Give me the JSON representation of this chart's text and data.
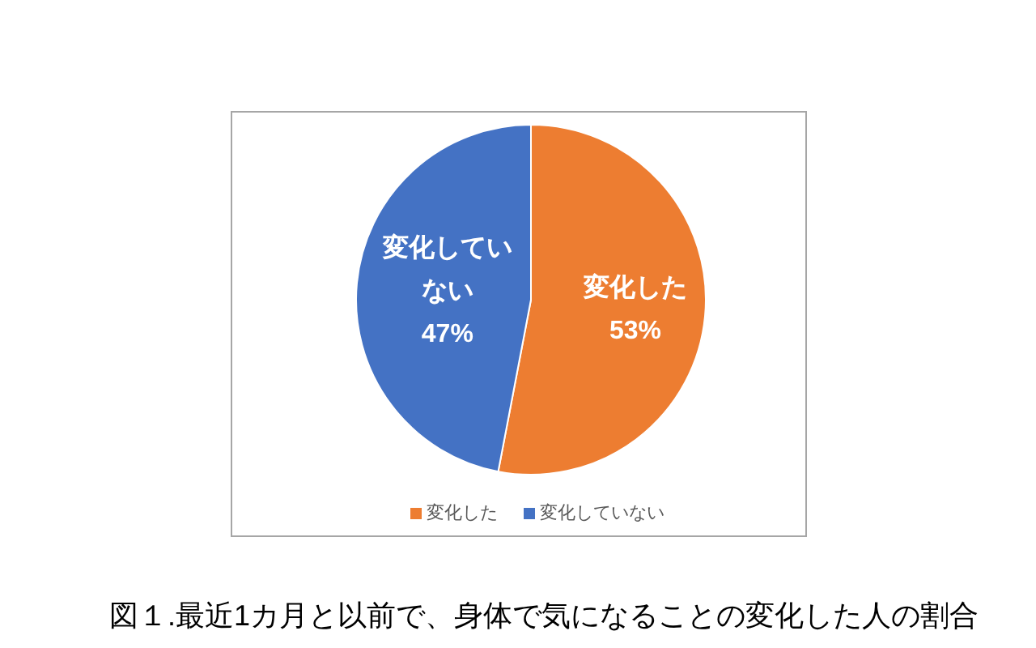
{
  "chart_data": {
    "type": "pie",
    "title": "図１.最近1カ月と以前で、身体で気になることの変化した人の割合",
    "categories": [
      "変化した",
      "変化していない"
    ],
    "values": [
      53,
      47
    ],
    "colors": [
      "#ed7d31",
      "#4472c4"
    ],
    "value_labels": [
      "53%",
      "47%"
    ],
    "legend": "bottom"
  }
}
